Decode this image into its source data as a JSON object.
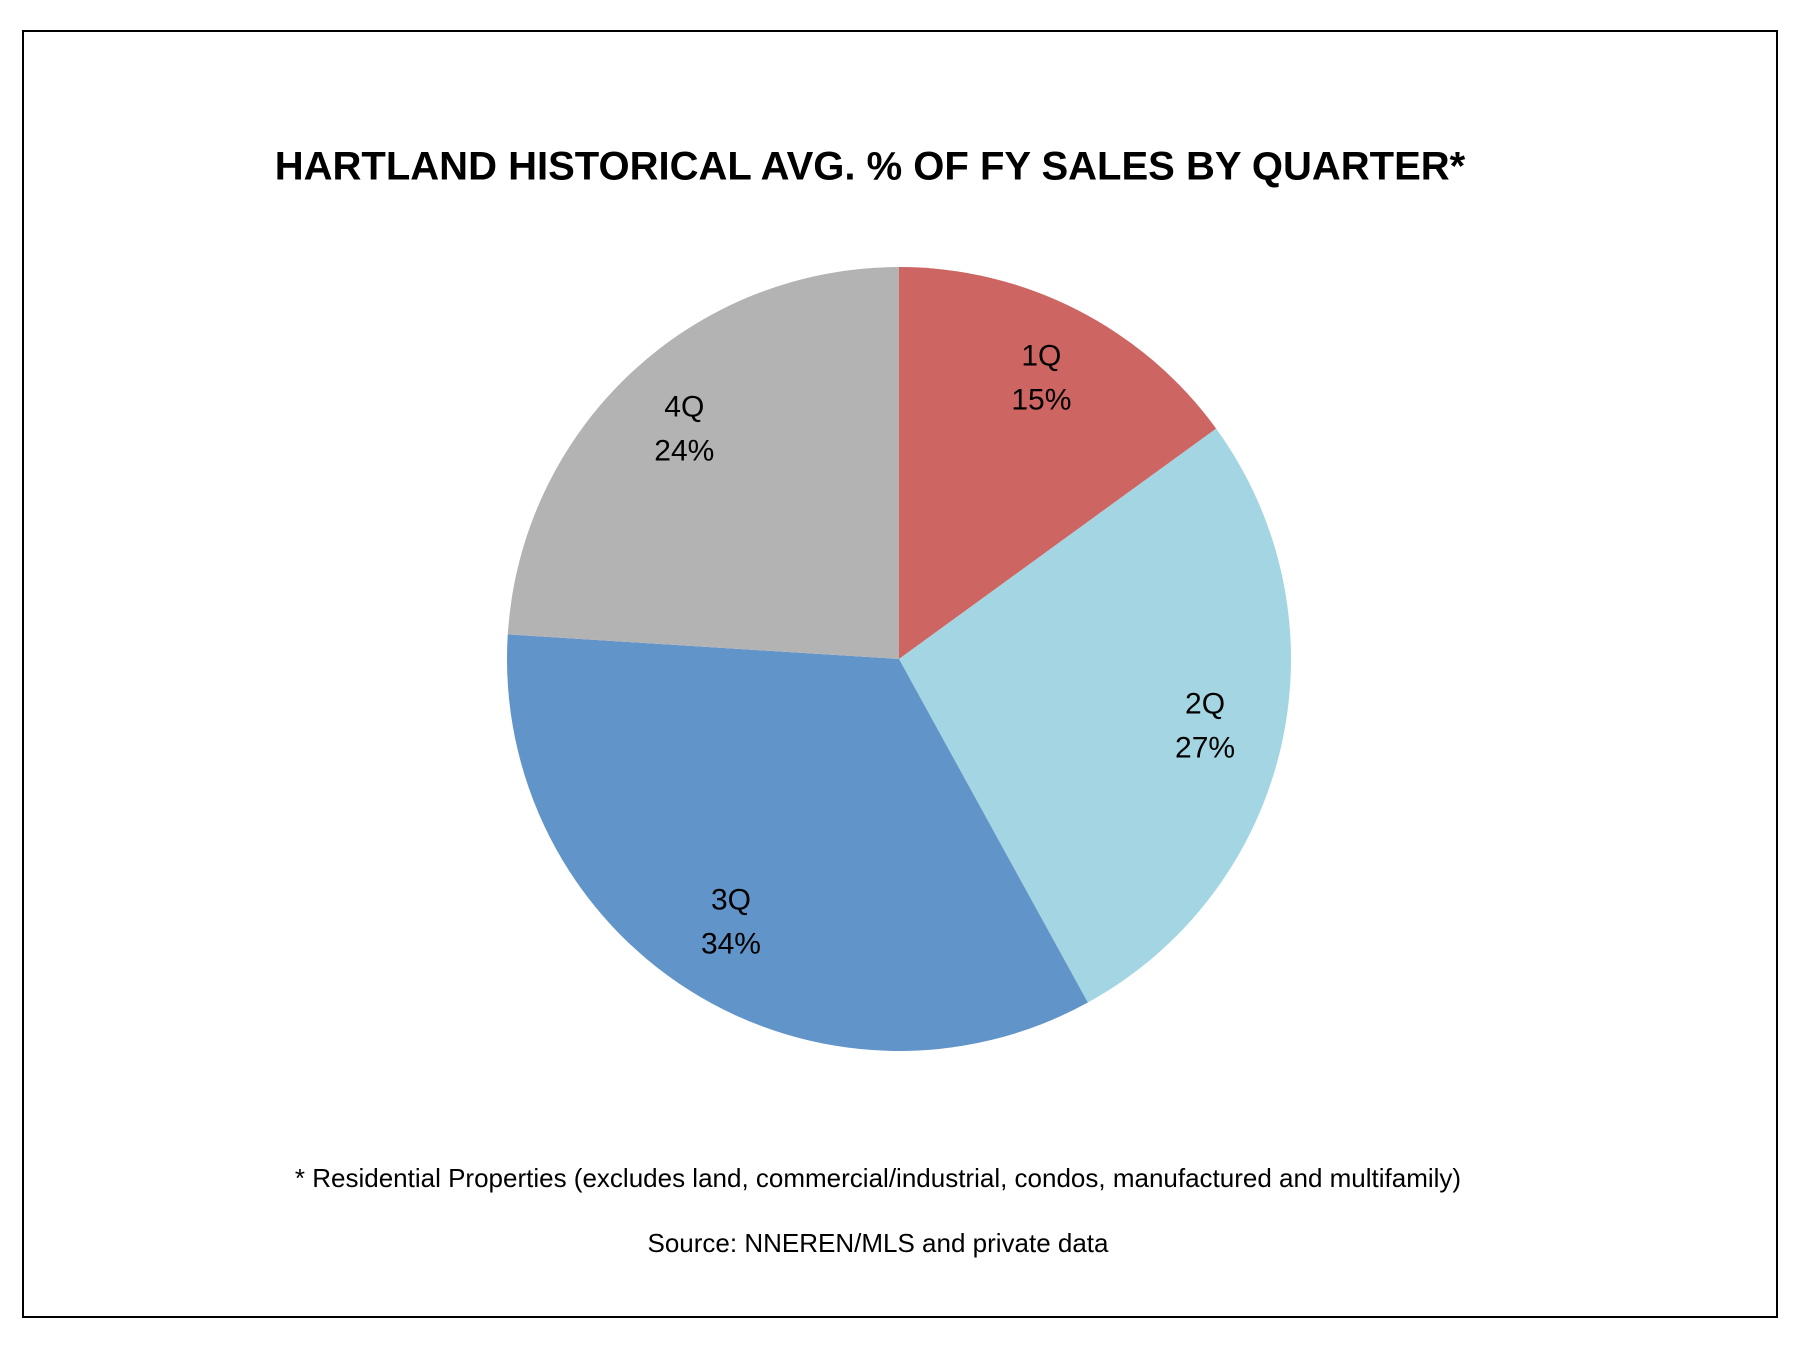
{
  "chart_data": {
    "type": "pie",
    "title": "HARTLAND HISTORICAL AVG. % OF FY SALES BY QUARTER*",
    "categories": [
      "1Q",
      "2Q",
      "3Q",
      "4Q"
    ],
    "values": [
      15,
      27,
      34,
      24
    ],
    "value_labels": [
      "15%",
      "27%",
      "34%",
      "24%"
    ],
    "colors": [
      "#cd6562",
      "#a3d6e2",
      "#6194c8",
      "#b3b3b3"
    ],
    "footnote": "* Residential Properties (excludes land, commercial/industrial, condos, manufactured and multifamily)",
    "source": "Source: NNEREN/MLS and private data"
  }
}
